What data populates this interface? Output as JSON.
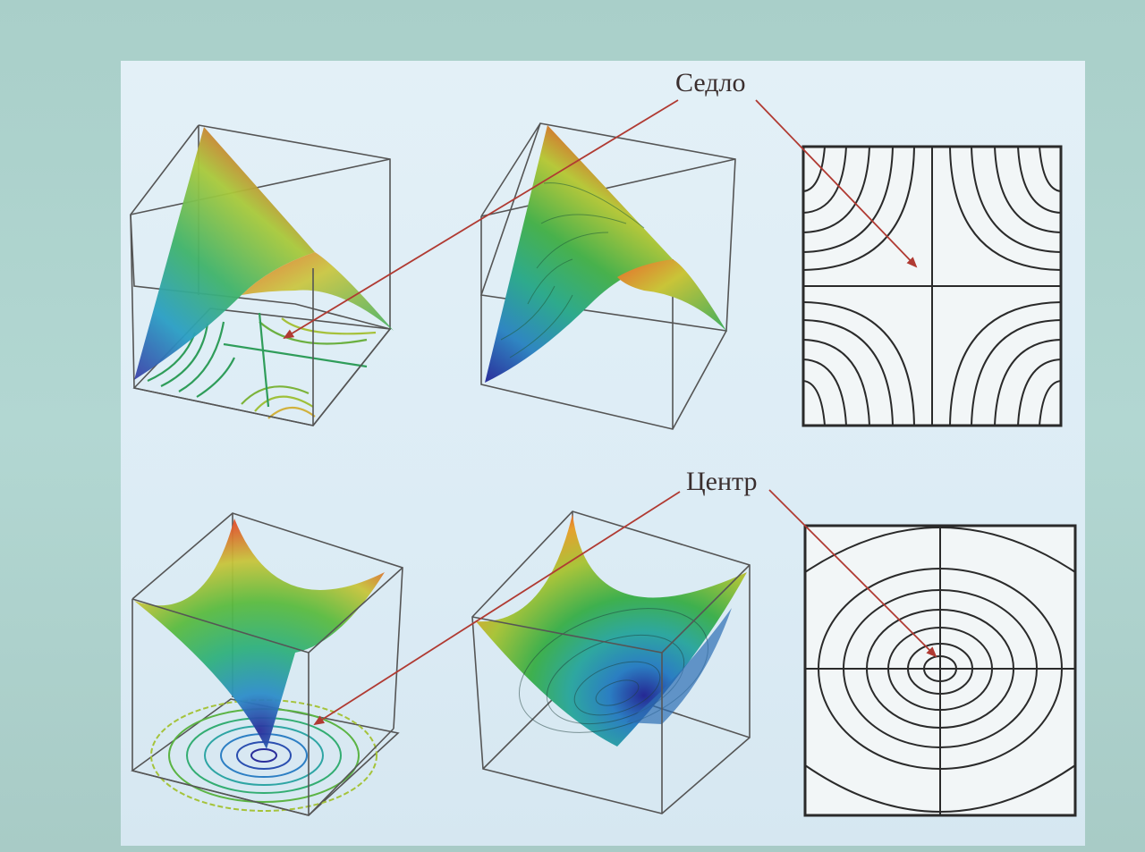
{
  "labels": {
    "saddle": "Седло",
    "center": "Центр"
  },
  "colors": {
    "arrow": "#b03a32",
    "box": "#555555",
    "contour": "#2a2a2a",
    "surface_low": "#2c3e9a",
    "surface_mid": "#2ea66a",
    "surface_high": "#e04a2a"
  },
  "rows": [
    {
      "kind": "saddle",
      "panels": [
        "scatter-surface-with-floor-contours",
        "filled-contour-surface",
        "contour-plot-2d"
      ]
    },
    {
      "kind": "center",
      "panels": [
        "scatter-surface-with-floor-contours",
        "filled-contour-surface",
        "contour-plot-2d"
      ]
    }
  ]
}
